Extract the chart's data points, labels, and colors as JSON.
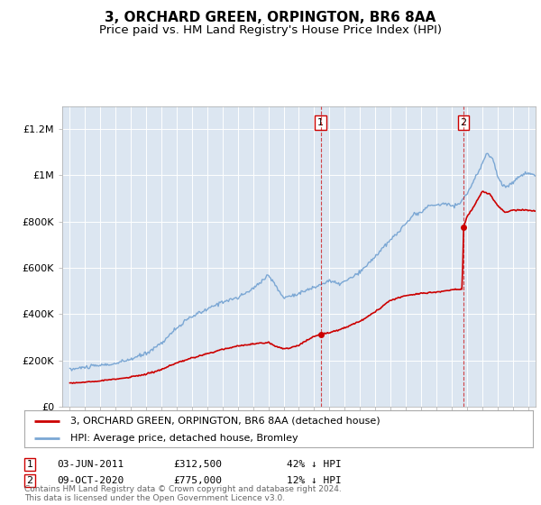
{
  "title": "3, ORCHARD GREEN, ORPINGTON, BR6 8AA",
  "subtitle": "Price paid vs. HM Land Registry's House Price Index (HPI)",
  "title_fontsize": 11,
  "subtitle_fontsize": 9.5,
  "legend_line1": "3, ORCHARD GREEN, ORPINGTON, BR6 8AA (detached house)",
  "legend_line2": "HPI: Average price, detached house, Bromley",
  "sale1_date": "03-JUN-2011",
  "sale1_price": "£312,500",
  "sale1_hpi": "42% ↓ HPI",
  "sale1_year": 2011.42,
  "sale1_value": 312500,
  "sale2_date": "09-OCT-2020",
  "sale2_price": "£775,000",
  "sale2_hpi": "12% ↓ HPI",
  "sale2_year": 2020.78,
  "sale2_value": 775000,
  "hpi_color": "#7ba7d4",
  "sale_color": "#cc0000",
  "vline_color": "#cc0000",
  "bg_color": "#dce6f1",
  "grid_color": "#ffffff",
  "footer_text": "Contains HM Land Registry data © Crown copyright and database right 2024.\nThis data is licensed under the Open Government Licence v3.0.",
  "ylim": [
    0,
    1300000
  ],
  "yticks": [
    0,
    200000,
    400000,
    600000,
    800000,
    1000000,
    1200000
  ],
  "ytick_labels": [
    "£0",
    "£200K",
    "£400K",
    "£600K",
    "£800K",
    "£1M",
    "£1.2M"
  ],
  "xstart": 1994.5,
  "xend": 2025.5
}
